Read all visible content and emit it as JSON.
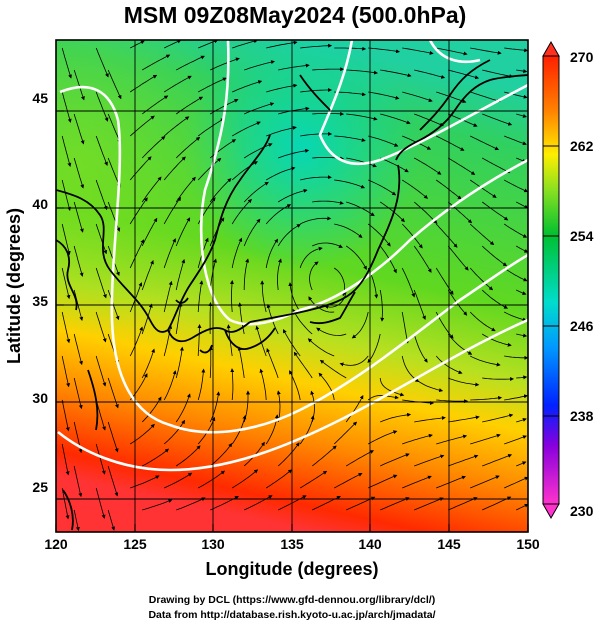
{
  "title": "MSM 09Z08May2024 (500.0hPa)",
  "xaxis": {
    "label": "Longitude (degrees)",
    "ticks": [
      "120",
      "125",
      "130",
      "135",
      "140",
      "145",
      "150"
    ],
    "range": [
      120,
      150
    ]
  },
  "yaxis": {
    "label": "Latitude  (degrees)",
    "ticks": [
      "25",
      "30",
      "35",
      "40",
      "45"
    ],
    "range": [
      22.4,
      47.6
    ]
  },
  "colorbar": {
    "labels": [
      "230",
      "238",
      "246",
      "254",
      "262",
      "270"
    ],
    "range": [
      230,
      270
    ],
    "colors": [
      "#ff33cc",
      "#0000ff",
      "#00d0d0",
      "#00c030",
      "#ffd000",
      "#ff2000"
    ]
  },
  "footer": {
    "line1": "Drawing by DCL (https://www.gfd-dennou.org/library/dcl/)",
    "line2": "Data from http://database.rish.kyoto-u.ac.jp/arch/jmadata/"
  },
  "contour_colors": {
    "isotherm": "#ffffff",
    "coast": "#000000",
    "grid": "#000000"
  }
}
